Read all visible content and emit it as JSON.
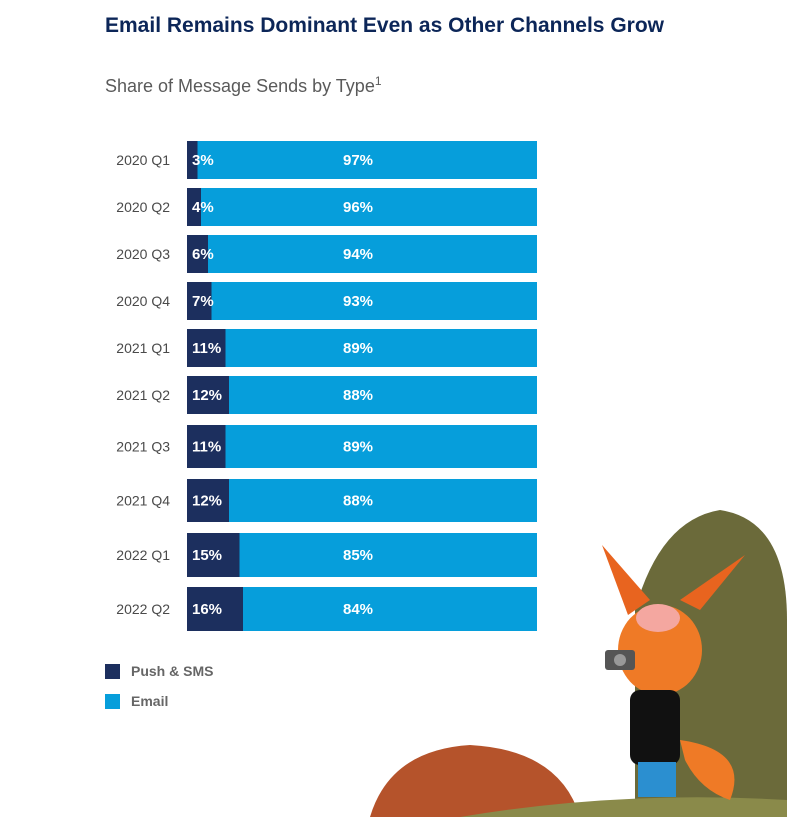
{
  "chart_data": {
    "type": "bar",
    "orientation": "horizontal-stacked-100",
    "title": "Email Remains Dominant Even as Other Channels Grow",
    "subtitle": "Share of Message Sends by Type",
    "footnote_marker": "1",
    "categories": [
      "2020 Q1",
      "2020 Q2",
      "2020 Q3",
      "2020 Q4",
      "2021 Q1",
      "2021 Q2",
      "2021 Q3",
      "2021 Q4",
      "2022 Q1",
      "2022 Q2"
    ],
    "series": [
      {
        "name": "Push & SMS",
        "color": "#1c2f5e",
        "values": [
          3,
          4,
          6,
          7,
          11,
          12,
          11,
          12,
          15,
          16
        ]
      },
      {
        "name": "Email",
        "color": "#069edb",
        "values": [
          97,
          96,
          94,
          93,
          89,
          88,
          89,
          88,
          85,
          84
        ]
      }
    ],
    "value_suffix": "%",
    "xlim": [
      0,
      100
    ],
    "grid": false,
    "legend_placement": "bottom-left"
  }
}
